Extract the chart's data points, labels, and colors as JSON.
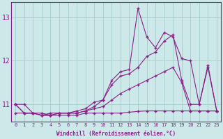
{
  "xlabel": "Windchill (Refroidissement éolien,°C)",
  "bg_color": "#cce8e8",
  "grid_color": "#aad0d0",
  "line_color": "#882288",
  "xlim": [
    -0.5,
    23.5
  ],
  "ylim": [
    10.6,
    13.35
  ],
  "xticks": [
    0,
    1,
    2,
    3,
    4,
    5,
    6,
    7,
    8,
    9,
    10,
    11,
    12,
    13,
    14,
    15,
    16,
    17,
    18,
    19,
    20,
    21,
    22,
    23
  ],
  "yticks": [
    11,
    12,
    13
  ],
  "series": [
    [
      11.0,
      11.0,
      10.8,
      10.8,
      10.75,
      10.8,
      10.8,
      10.8,
      10.85,
      10.95,
      11.1,
      11.55,
      11.75,
      11.8,
      13.2,
      12.55,
      12.3,
      12.65,
      12.55,
      12.05,
      12.0,
      11.0,
      11.85,
      10.85
    ],
    [
      11.0,
      10.8,
      10.8,
      10.75,
      10.8,
      10.8,
      10.8,
      10.85,
      10.9,
      11.05,
      11.1,
      11.45,
      11.65,
      11.7,
      11.85,
      12.1,
      12.2,
      12.45,
      12.6,
      11.55,
      11.0,
      11.0,
      11.9,
      10.85
    ],
    [
      11.0,
      10.8,
      10.8,
      10.75,
      10.75,
      10.8,
      10.8,
      10.8,
      10.85,
      10.9,
      10.95,
      11.1,
      11.25,
      11.35,
      11.45,
      11.55,
      11.65,
      11.75,
      11.85,
      11.5,
      10.85,
      10.85,
      10.85,
      10.85
    ],
    [
      10.8,
      10.8,
      10.8,
      10.75,
      10.75,
      10.75,
      10.75,
      10.75,
      10.8,
      10.8,
      10.8,
      10.8,
      10.8,
      10.82,
      10.84,
      10.85,
      10.85,
      10.85,
      10.85,
      10.85,
      10.85,
      10.85,
      10.85,
      10.85
    ]
  ]
}
